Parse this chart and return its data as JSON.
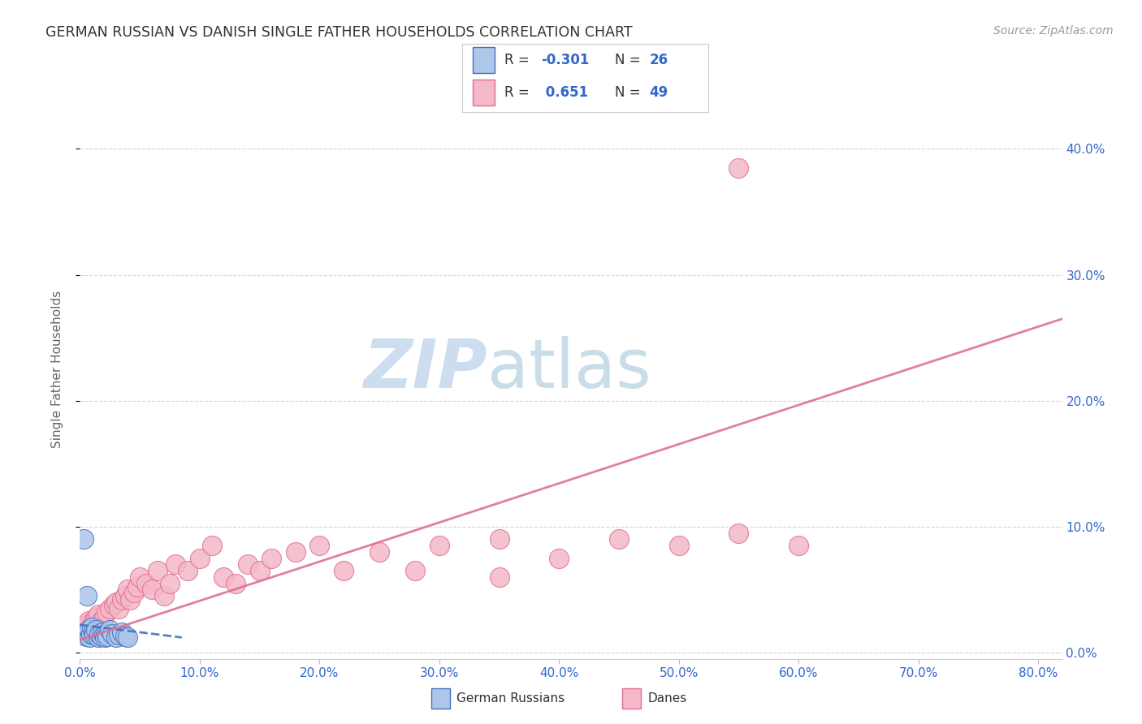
{
  "title": "GERMAN RUSSIAN VS DANISH SINGLE FATHER HOUSEHOLDS CORRELATION CHART",
  "source": "Source: ZipAtlas.com",
  "ylabel": "Single Father Households",
  "xlim": [
    0.0,
    0.82
  ],
  "ylim": [
    -0.005,
    0.455
  ],
  "xlabel_vals": [
    0.0,
    0.1,
    0.2,
    0.3,
    0.4,
    0.5,
    0.6,
    0.7,
    0.8
  ],
  "xlabel_ticks": [
    "0.0%",
    "10.0%",
    "20.0%",
    "30.0%",
    "40.0%",
    "50.0%",
    "60.0%",
    "70.0%",
    "80.0%"
  ],
  "right_ytick_vals": [
    0.0,
    0.1,
    0.2,
    0.3,
    0.4
  ],
  "right_ytick_labels": [
    "0.0%",
    "10.0%",
    "20.0%",
    "30.0%",
    "40.0%"
  ],
  "legend_r_german": "-0.301",
  "legend_n_german": "26",
  "legend_r_danish": "0.651",
  "legend_n_danish": "49",
  "german_color": "#aec6e8",
  "danish_color": "#f4b8c8",
  "german_line_color": "#4472c4",
  "danish_line_color": "#e07090",
  "watermark_zip": "ZIP",
  "watermark_atlas": "atlas",
  "watermark_color_zip": "#ccddf0",
  "watermark_color_atlas": "#c8dde8",
  "background_color": "#ffffff",
  "grid_color": "#cccccc",
  "title_color": "#333333",
  "axis_label_color": "#666666",
  "tick_color": "#3366cc",
  "german_scatter_x": [
    0.003,
    0.005,
    0.007,
    0.008,
    0.009,
    0.01,
    0.011,
    0.012,
    0.013,
    0.015,
    0.016,
    0.018,
    0.019,
    0.02,
    0.021,
    0.022,
    0.023,
    0.025,
    0.027,
    0.03,
    0.032,
    0.035,
    0.038,
    0.04,
    0.003,
    0.006
  ],
  "german_scatter_y": [
    0.015,
    0.013,
    0.018,
    0.012,
    0.015,
    0.02,
    0.016,
    0.014,
    0.018,
    0.012,
    0.015,
    0.013,
    0.016,
    0.014,
    0.012,
    0.015,
    0.013,
    0.018,
    0.015,
    0.012,
    0.014,
    0.016,
    0.013,
    0.012,
    0.09,
    0.045
  ],
  "danish_scatter_x": [
    0.003,
    0.005,
    0.007,
    0.009,
    0.011,
    0.013,
    0.015,
    0.018,
    0.02,
    0.022,
    0.025,
    0.028,
    0.03,
    0.032,
    0.035,
    0.038,
    0.04,
    0.042,
    0.045,
    0.048,
    0.05,
    0.055,
    0.06,
    0.065,
    0.07,
    0.075,
    0.08,
    0.09,
    0.1,
    0.11,
    0.12,
    0.13,
    0.14,
    0.15,
    0.16,
    0.18,
    0.2,
    0.22,
    0.25,
    0.28,
    0.3,
    0.35,
    0.4,
    0.45,
    0.5,
    0.55,
    0.6,
    0.55,
    0.35
  ],
  "danish_scatter_y": [
    0.018,
    0.022,
    0.025,
    0.02,
    0.025,
    0.028,
    0.03,
    0.025,
    0.028,
    0.032,
    0.035,
    0.038,
    0.04,
    0.035,
    0.042,
    0.045,
    0.05,
    0.042,
    0.048,
    0.052,
    0.06,
    0.055,
    0.05,
    0.065,
    0.045,
    0.055,
    0.07,
    0.065,
    0.075,
    0.085,
    0.06,
    0.055,
    0.07,
    0.065,
    0.075,
    0.08,
    0.085,
    0.065,
    0.08,
    0.065,
    0.085,
    0.06,
    0.075,
    0.09,
    0.085,
    0.095,
    0.085,
    0.385,
    0.09
  ],
  "german_trend_x": [
    0.0,
    0.085
  ],
  "german_trend_y": [
    0.022,
    0.012
  ],
  "danish_trend_x": [
    0.0,
    0.82
  ],
  "danish_trend_y": [
    0.01,
    0.265
  ]
}
